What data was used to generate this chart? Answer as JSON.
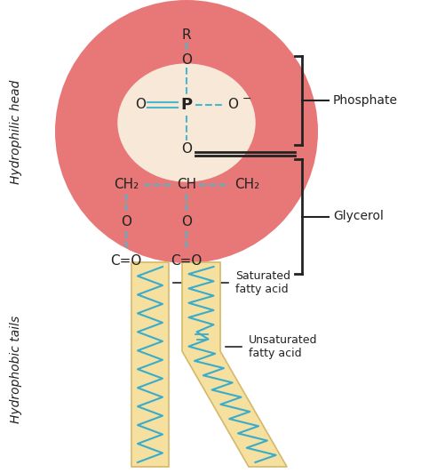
{
  "bg_color": "#ffffff",
  "circle_color": "#e87878",
  "inner_glow_color": "#f7e8d8",
  "bond_color": "#4ab8cc",
  "text_color": "#222222",
  "tail_fill_color": "#f5e0a0",
  "tail_edge_color": "#d4b86a",
  "tail_line_color": "#3aaccb",
  "left_side_label_head": "Hydrophilic head",
  "left_side_label_tail": "Hydrophobic tails",
  "phosphate_label": "Phosphate",
  "glycerol_label": "Glycerol",
  "saturated_label": "Saturated\nfatty acid",
  "unsaturated_label": "Unsaturated\nfatty acid"
}
